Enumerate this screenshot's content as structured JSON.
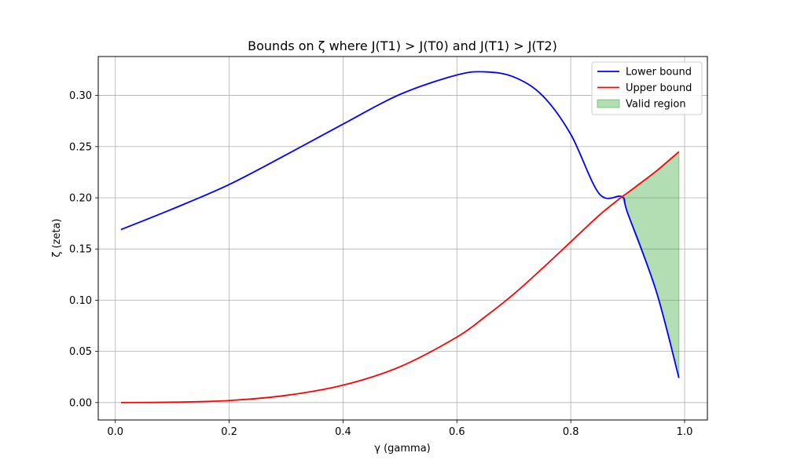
{
  "chart_data": {
    "type": "line",
    "title": "Bounds on ζ where J(T1) > J(T0) and J(T1) > J(T2)",
    "xlabel": "γ (gamma)",
    "ylabel": "ζ (zeta)",
    "xlim": [
      -0.03,
      1.04
    ],
    "ylim": [
      -0.017,
      0.338
    ],
    "xticks": [
      0.0,
      0.2,
      0.4,
      0.6,
      0.8,
      1.0
    ],
    "xtick_labels": [
      "0.0",
      "0.2",
      "0.4",
      "0.6",
      "0.8",
      "1.0"
    ],
    "yticks": [
      0.0,
      0.05,
      0.1,
      0.15,
      0.2,
      0.25,
      0.3
    ],
    "ytick_labels": [
      "0.00",
      "0.05",
      "0.10",
      "0.15",
      "0.20",
      "0.25",
      "0.30"
    ],
    "grid": true,
    "legend_position": "top-right",
    "x": [
      0.01,
      0.1,
      0.2,
      0.3,
      0.4,
      0.5,
      0.6,
      0.65,
      0.7,
      0.75,
      0.8,
      0.85,
      0.89,
      0.9,
      0.95,
      0.99
    ],
    "series": [
      {
        "name": "Lower bound",
        "color": "#0000ff",
        "values": [
          0.169,
          0.189,
          0.213,
          0.242,
          0.272,
          0.301,
          0.32,
          0.323,
          0.318,
          0.3,
          0.262,
          0.204,
          0.201,
          0.185,
          0.109,
          0.024
        ]
      },
      {
        "name": "Upper bound",
        "color": "#ff0000",
        "values": [
          0.0,
          0.0004,
          0.002,
          0.007,
          0.017,
          0.035,
          0.064,
          0.084,
          0.106,
          0.131,
          0.157,
          0.183,
          0.201,
          0.205,
          0.226,
          0.245
        ]
      }
    ],
    "fill": {
      "name": "Valid region",
      "color": "#2ca02c",
      "opacity": 0.36,
      "x": [
        0.89,
        0.9,
        0.92,
        0.95,
        0.97,
        0.99
      ],
      "lower": [
        0.201,
        0.185,
        0.158,
        0.109,
        0.07,
        0.024
      ],
      "upper": [
        0.201,
        0.205,
        0.214,
        0.226,
        0.236,
        0.245
      ]
    }
  }
}
